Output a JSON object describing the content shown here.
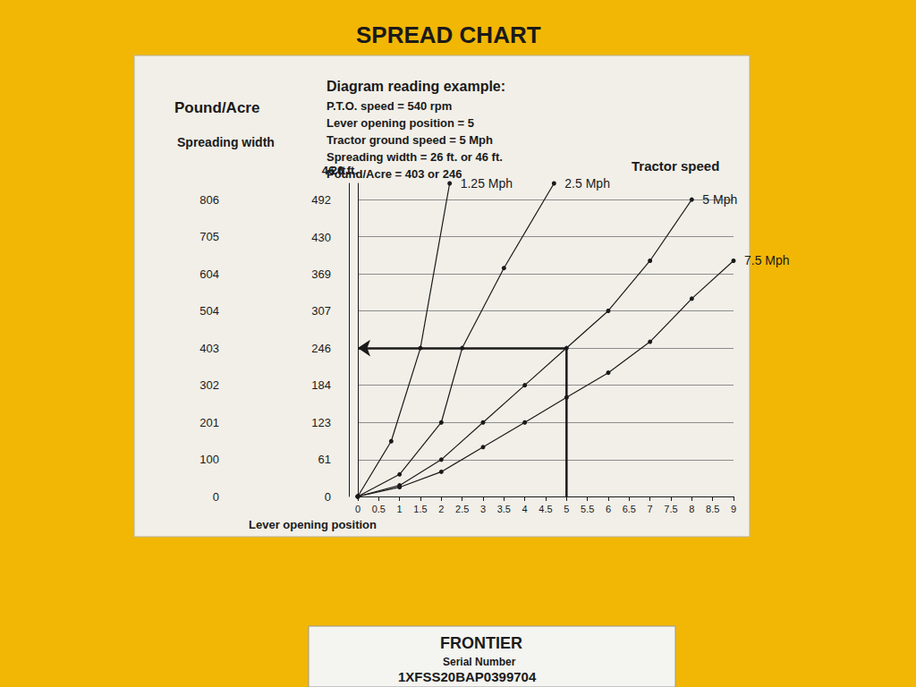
{
  "chart_data": {
    "type": "line",
    "title": "SPREAD CHART",
    "y_header": "Pound/Acre",
    "width_header": "Spreading width",
    "example_title": "Diagram reading example:",
    "example_lines": [
      "P.T.O. speed = 540 rpm",
      "Lever opening position = 5",
      "Tractor ground speed = 5 Mph",
      "Spreading width = 26 ft. or 46 ft.",
      "Pound/Acre = 403 or 246"
    ],
    "xlabel": "Lever opening position",
    "ylabel": "26 ft.",
    "y2label": "46 ft.",
    "annotation": "Tractor speed",
    "xlim": [
      0,
      9
    ],
    "xticks": [
      0,
      0.5,
      1,
      1.5,
      2,
      2.5,
      3,
      3.5,
      4,
      4.5,
      5,
      5.5,
      6,
      6.5,
      7,
      7.5,
      8,
      8.5,
      9
    ],
    "ylim": [
      0,
      850
    ],
    "yticks": [
      0,
      100,
      201,
      302,
      403,
      504,
      604,
      705,
      806
    ],
    "y2lim": [
      0,
      519
    ],
    "y2ticks": [
      0,
      61,
      123,
      184,
      246,
      307,
      369,
      430,
      492
    ],
    "grid": true,
    "marker": "circle",
    "series": [
      {
        "name": "1.25 Mph",
        "color": "#1a1a1a",
        "x": [
          0,
          0.8,
          1.5,
          2.2
        ],
        "values": [
          0,
          150,
          403,
          850
        ]
      },
      {
        "name": "2.5 Mph",
        "color": "#1a1a1a",
        "x": [
          0,
          1,
          2,
          2.5,
          3.5,
          4.7
        ],
        "values": [
          0,
          60,
          201,
          403,
          620,
          850
        ]
      },
      {
        "name": "5 Mph",
        "color": "#1a1a1a",
        "x": [
          0,
          1,
          2,
          3,
          4,
          5,
          6,
          7,
          8
        ],
        "values": [
          0,
          30,
          100,
          201,
          302,
          403,
          504,
          640,
          806
        ]
      },
      {
        "name": "7.5 Mph",
        "color": "#1a1a1a",
        "x": [
          0,
          1,
          2,
          3,
          4,
          5,
          6,
          7,
          8,
          9
        ],
        "values": [
          0,
          25,
          67,
          134,
          201,
          269,
          336,
          420,
          537,
          640
        ]
      }
    ],
    "example": {
      "x": 5,
      "y": 403
    },
    "plate": {
      "brand": "FRONTIER",
      "label": "Serial Number",
      "serial": "1XFSS20BAP0399704"
    }
  }
}
